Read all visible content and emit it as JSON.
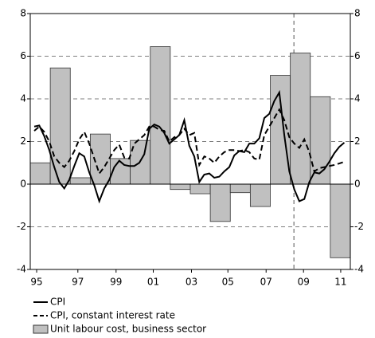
{
  "chart_data": {
    "type": "combo",
    "xlim": [
      1995,
      2011
    ],
    "ylim": [
      -4,
      8
    ],
    "yticks": [
      -4,
      -2,
      0,
      2,
      4,
      6,
      8
    ],
    "xticks": [
      {
        "value": 1995.32,
        "label": "95"
      },
      {
        "value": 1997.38,
        "label": "97"
      },
      {
        "value": 1999.29,
        "label": "99"
      },
      {
        "value": 2001.15,
        "label": "01"
      },
      {
        "value": 2003.06,
        "label": "03"
      },
      {
        "value": 2004.88,
        "label": "05"
      },
      {
        "value": 2006.79,
        "label": "07"
      },
      {
        "value": 2008.66,
        "label": "09"
      },
      {
        "value": 2010.52,
        "label": "11"
      }
    ],
    "grid": true,
    "vline": 2008.18,
    "series": [
      {
        "name": "Unit labour cost, business sector",
        "type": "bar",
        "color": "#c0c0c0",
        "x": [
          1995.5,
          1996.5,
          1997.5,
          1998.5,
          1999.5,
          2000.5,
          2001.5,
          2002.5,
          2003.5,
          2004.5,
          2005.5,
          2006.5,
          2007.5,
          2008.5,
          2009.5,
          2010.5
        ],
        "values": [
          1.0,
          5.45,
          0.3,
          2.35,
          1.2,
          2.05,
          6.45,
          -0.25,
          -0.45,
          -1.75,
          -0.4,
          -1.05,
          5.1,
          6.15,
          4.1,
          -3.45
        ]
      },
      {
        "name": "CPI",
        "type": "line",
        "color": "#000000",
        "dashed": false,
        "x": [
          1995.2,
          1995.45,
          1995.7,
          1995.95,
          1996.2,
          1996.45,
          1996.7,
          1996.95,
          1997.2,
          1997.45,
          1997.7,
          1997.95,
          1998.2,
          1998.45,
          1998.7,
          1998.95,
          1999.2,
          1999.45,
          1999.7,
          1999.95,
          2000.2,
          2000.45,
          2000.7,
          2000.95,
          2001.2,
          2001.45,
          2001.7,
          2001.95,
          2002.2,
          2002.45,
          2002.7,
          2002.95,
          2003.2,
          2003.45,
          2003.7,
          2003.95,
          2004.2,
          2004.45,
          2004.7,
          2004.95,
          2005.2,
          2005.45,
          2005.7,
          2005.95,
          2006.2,
          2006.45,
          2006.7,
          2006.95,
          2007.2,
          2007.45,
          2007.7,
          2007.95,
          2008.2,
          2008.45,
          2008.7,
          2008.95,
          2009.2,
          2009.45,
          2009.7,
          2009.95,
          2010.2,
          2010.45,
          2010.7
        ],
        "values": [
          2.7,
          2.75,
          2.25,
          1.6,
          0.8,
          0.1,
          -0.2,
          0.2,
          0.85,
          1.45,
          1.3,
          0.55,
          -0.05,
          -0.8,
          -0.2,
          0.2,
          0.8,
          1.1,
          0.9,
          0.85,
          0.85,
          1.0,
          1.4,
          2.6,
          2.8,
          2.7,
          2.4,
          1.9,
          2.1,
          2.3,
          3.0,
          1.8,
          1.3,
          0.1,
          0.45,
          0.5,
          0.3,
          0.35,
          0.6,
          0.8,
          1.35,
          1.55,
          1.5,
          1.9,
          1.9,
          2.15,
          3.1,
          3.3,
          3.9,
          4.3,
          2.3,
          0.6,
          -0.25,
          -0.8,
          -0.7,
          0.1,
          0.55,
          0.5,
          0.7,
          1.05,
          1.45,
          1.75,
          1.95
        ]
      },
      {
        "name": "CPI, constant interest rate",
        "type": "line",
        "color": "#000000",
        "dashed": true,
        "x": [
          1995.2,
          1995.45,
          1995.7,
          1995.95,
          1996.2,
          1996.45,
          1996.7,
          1996.95,
          1997.2,
          1997.45,
          1997.7,
          1997.95,
          1998.2,
          1998.45,
          1998.7,
          1998.95,
          1999.2,
          1999.45,
          1999.7,
          1999.95,
          2000.2,
          2000.45,
          2000.7,
          2000.95,
          2001.2,
          2001.45,
          2001.7,
          2001.95,
          2002.2,
          2002.45,
          2002.7,
          2002.95,
          2003.2,
          2003.45,
          2003.7,
          2003.95,
          2004.2,
          2004.45,
          2004.7,
          2004.95,
          2005.2,
          2005.45,
          2005.7,
          2005.95,
          2006.2,
          2006.45,
          2006.7,
          2006.95,
          2007.2,
          2007.45,
          2007.7,
          2007.95,
          2008.2,
          2008.45,
          2008.7,
          2008.95,
          2009.2,
          2009.45,
          2009.7,
          2009.95,
          2010.2,
          2010.45,
          2010.7
        ],
        "values": [
          2.5,
          2.7,
          2.45,
          2.0,
          1.3,
          1.0,
          0.8,
          1.1,
          1.55,
          2.1,
          2.45,
          1.9,
          1.2,
          0.5,
          0.8,
          1.2,
          1.6,
          1.85,
          1.25,
          1.2,
          1.9,
          2.1,
          2.3,
          2.7,
          2.7,
          2.55,
          2.5,
          2.0,
          2.2,
          2.3,
          2.6,
          2.3,
          2.4,
          0.9,
          1.3,
          1.2,
          1.0,
          1.3,
          1.5,
          1.6,
          1.6,
          1.55,
          1.6,
          1.5,
          1.2,
          1.15,
          2.3,
          2.7,
          3.1,
          3.5,
          3.0,
          2.2,
          1.9,
          1.7,
          2.1,
          1.5,
          0.6,
          0.75,
          0.8,
          0.85,
          0.9,
          0.97,
          1.05
        ]
      }
    ],
    "legend_order": [
      1,
      2,
      0
    ]
  }
}
